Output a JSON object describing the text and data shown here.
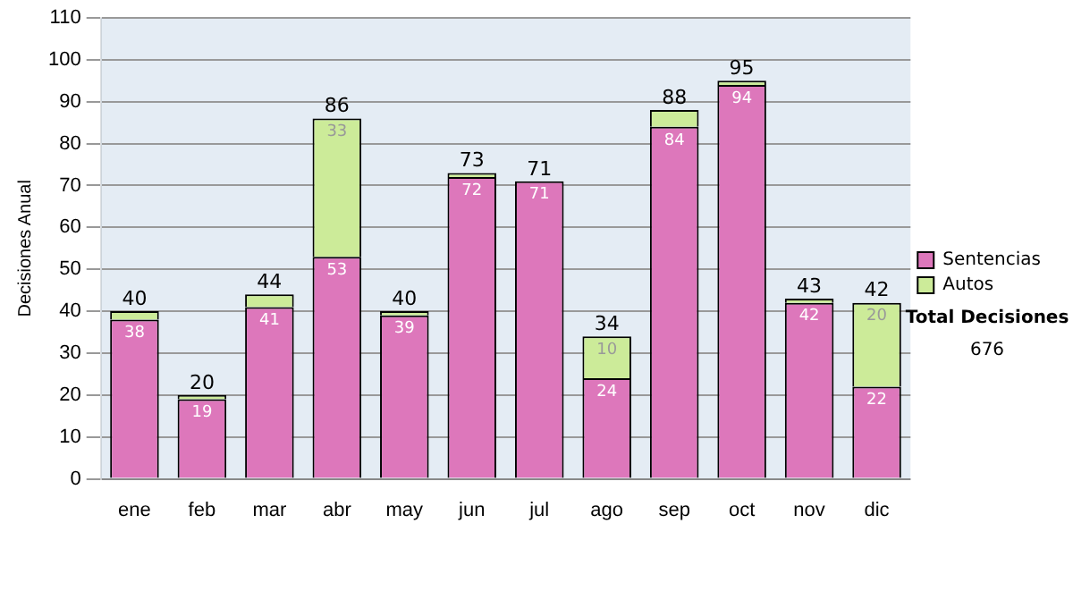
{
  "chart_data": {
    "type": "bar",
    "stacked": true,
    "ylabel": "Decisiones Anual",
    "categories": [
      "ene",
      "feb",
      "mar",
      "abr",
      "may",
      "jun",
      "jul",
      "ago",
      "sep",
      "oct",
      "nov",
      "dic"
    ],
    "series": [
      {
        "name": "Sentencias",
        "color": "#dd77bb",
        "values": [
          38,
          19,
          41,
          53,
          39,
          72,
          71,
          24,
          84,
          94,
          42,
          22
        ],
        "value_labels": [
          "38",
          "19",
          "41",
          "53",
          "39",
          "72",
          "71",
          "24",
          "84",
          "94",
          "42",
          "22"
        ]
      },
      {
        "name": "Autos",
        "color": "#cceb99",
        "values": [
          2,
          1,
          3,
          33,
          1,
          1,
          0,
          10,
          4,
          1,
          1,
          20
        ],
        "value_labels": [
          null,
          null,
          null,
          "33",
          null,
          null,
          null,
          "10",
          null,
          null,
          null,
          "20"
        ]
      }
    ],
    "totals": [
      "40",
      "20",
      "44",
      "86",
      "40",
      "73",
      "71",
      "34",
      "88",
      "95",
      "43",
      "42"
    ],
    "ylim": [
      0,
      110
    ],
    "yticks": [
      0,
      10,
      20,
      30,
      40,
      50,
      60,
      70,
      80,
      90,
      100,
      110
    ],
    "grid": "y",
    "legend": "right",
    "annotations": [
      "Total Decisiones",
      "676"
    ]
  }
}
